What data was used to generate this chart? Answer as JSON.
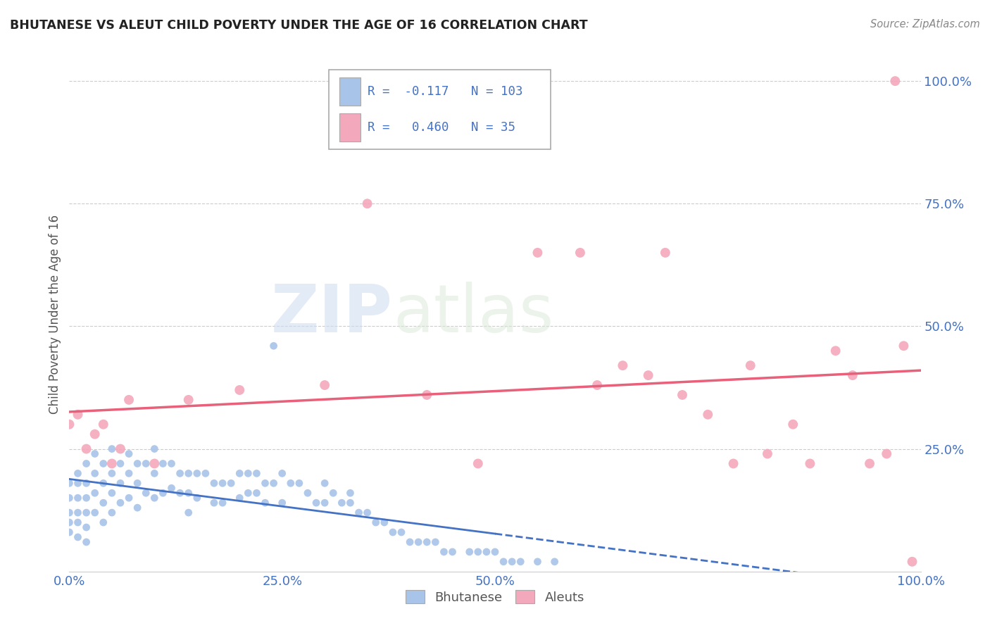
{
  "title": "BHUTANESE VS ALEUT CHILD POVERTY UNDER THE AGE OF 16 CORRELATION CHART",
  "source": "Source: ZipAtlas.com",
  "ylabel": "Child Poverty Under the Age of 16",
  "R1": -0.117,
  "N1": 103,
  "R2": 0.46,
  "N2": 35,
  "legend_label1": "Bhutanese",
  "legend_label2": "Aleuts",
  "color1": "#a8c4e8",
  "color2": "#f4a8bc",
  "line_color1": "#4472c4",
  "line_color2": "#e8607a",
  "text_color_blue": "#4472c4",
  "watermark_zip": "ZIP",
  "watermark_atlas": "atlas",
  "background": "#ffffff",
  "bhutanese_x": [
    0.0,
    0.0,
    0.0,
    0.0,
    0.0,
    0.01,
    0.01,
    0.01,
    0.01,
    0.01,
    0.01,
    0.02,
    0.02,
    0.02,
    0.02,
    0.02,
    0.02,
    0.03,
    0.03,
    0.03,
    0.03,
    0.04,
    0.04,
    0.04,
    0.04,
    0.05,
    0.05,
    0.05,
    0.05,
    0.06,
    0.06,
    0.06,
    0.07,
    0.07,
    0.07,
    0.08,
    0.08,
    0.08,
    0.09,
    0.09,
    0.1,
    0.1,
    0.1,
    0.11,
    0.11,
    0.12,
    0.12,
    0.13,
    0.13,
    0.14,
    0.14,
    0.14,
    0.15,
    0.15,
    0.16,
    0.17,
    0.17,
    0.18,
    0.18,
    0.19,
    0.2,
    0.2,
    0.21,
    0.21,
    0.22,
    0.22,
    0.23,
    0.23,
    0.24,
    0.24,
    0.25,
    0.25,
    0.26,
    0.27,
    0.28,
    0.29,
    0.3,
    0.3,
    0.31,
    0.32,
    0.33,
    0.33,
    0.34,
    0.35,
    0.36,
    0.37,
    0.38,
    0.39,
    0.4,
    0.41,
    0.42,
    0.43,
    0.44,
    0.45,
    0.47,
    0.48,
    0.49,
    0.5,
    0.51,
    0.52,
    0.53,
    0.55,
    0.57
  ],
  "bhutanese_y": [
    0.18,
    0.15,
    0.12,
    0.1,
    0.08,
    0.2,
    0.18,
    0.15,
    0.12,
    0.1,
    0.07,
    0.22,
    0.18,
    0.15,
    0.12,
    0.09,
    0.06,
    0.24,
    0.2,
    0.16,
    0.12,
    0.22,
    0.18,
    0.14,
    0.1,
    0.25,
    0.2,
    0.16,
    0.12,
    0.22,
    0.18,
    0.14,
    0.24,
    0.2,
    0.15,
    0.22,
    0.18,
    0.13,
    0.22,
    0.16,
    0.25,
    0.2,
    0.15,
    0.22,
    0.16,
    0.22,
    0.17,
    0.2,
    0.16,
    0.2,
    0.16,
    0.12,
    0.2,
    0.15,
    0.2,
    0.18,
    0.14,
    0.18,
    0.14,
    0.18,
    0.2,
    0.15,
    0.2,
    0.16,
    0.2,
    0.16,
    0.18,
    0.14,
    0.46,
    0.18,
    0.2,
    0.14,
    0.18,
    0.18,
    0.16,
    0.14,
    0.18,
    0.14,
    0.16,
    0.14,
    0.16,
    0.14,
    0.12,
    0.12,
    0.1,
    0.1,
    0.08,
    0.08,
    0.06,
    0.06,
    0.06,
    0.06,
    0.04,
    0.04,
    0.04,
    0.04,
    0.04,
    0.04,
    0.02,
    0.02,
    0.02,
    0.02,
    0.02
  ],
  "aleut_x": [
    0.0,
    0.01,
    0.02,
    0.03,
    0.04,
    0.05,
    0.06,
    0.07,
    0.1,
    0.14,
    0.2,
    0.3,
    0.35,
    0.42,
    0.48,
    0.55,
    0.6,
    0.62,
    0.65,
    0.68,
    0.7,
    0.72,
    0.75,
    0.78,
    0.8,
    0.82,
    0.85,
    0.87,
    0.9,
    0.92,
    0.94,
    0.96,
    0.97,
    0.98,
    0.99
  ],
  "aleut_y": [
    0.3,
    0.32,
    0.25,
    0.28,
    0.3,
    0.22,
    0.25,
    0.35,
    0.22,
    0.35,
    0.37,
    0.38,
    0.75,
    0.36,
    0.22,
    0.65,
    0.65,
    0.38,
    0.42,
    0.4,
    0.65,
    0.36,
    0.32,
    0.22,
    0.42,
    0.24,
    0.3,
    0.22,
    0.45,
    0.4,
    0.22,
    0.24,
    1.0,
    0.46,
    0.02
  ],
  "xlim": [
    0.0,
    1.0
  ],
  "ylim": [
    0.0,
    1.05
  ],
  "xticks": [
    0.0,
    0.25,
    0.5,
    0.75,
    1.0
  ],
  "yticks": [
    0.25,
    0.5,
    0.75,
    1.0
  ],
  "xticklabels": [
    "0.0%",
    "25.0%",
    "50.0%",
    "",
    "100.0%"
  ],
  "yticklabels": [
    "25.0%",
    "50.0%",
    "75.0%",
    "100.0%"
  ],
  "marker_size1": 60,
  "marker_size2": 100
}
